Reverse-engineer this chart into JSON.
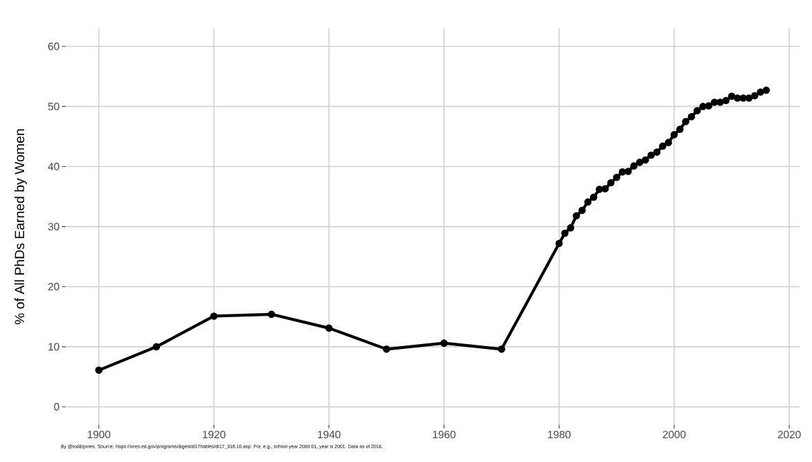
{
  "chart_data": {
    "type": "line",
    "ylabel": "% of All PhDs Earned by Women",
    "annotations": [
      "By @toddrjones. Source: https://nces.ed.gov/programs/digest/d17/tables/dt17_318.10.asp. For, e.g., school year 2000-01, year is 2001. Data as of 2016."
    ],
    "x": [
      1900,
      1910,
      1920,
      1930,
      1940,
      1950,
      1960,
      1970,
      1980,
      1981,
      1982,
      1983,
      1984,
      1985,
      1986,
      1987,
      1988,
      1989,
      1990,
      1991,
      1992,
      1993,
      1994,
      1995,
      1996,
      1997,
      1998,
      1999,
      2000,
      2001,
      2002,
      2003,
      2004,
      2005,
      2006,
      2007,
      2008,
      2009,
      2010,
      2011,
      2012,
      2013,
      2014,
      2015,
      2016
    ],
    "series": [
      {
        "color": "#000000",
        "values": [
          6.1,
          10.0,
          15.1,
          15.4,
          13.1,
          9.6,
          10.6,
          9.6,
          27.2,
          28.9,
          29.8,
          31.8,
          32.7,
          34.1,
          34.9,
          36.2,
          36.3,
          37.3,
          38.2,
          39.1,
          39.2,
          40.1,
          40.7,
          41.1,
          41.9,
          42.4,
          43.4,
          44.0,
          45.3,
          46.2,
          47.5,
          48.3,
          49.3,
          50.0,
          50.1,
          50.7,
          50.7,
          51.0,
          51.7,
          51.4,
          51.4,
          51.4,
          51.8,
          52.4,
          52.7
        ]
      }
    ],
    "xlim": [
      1894.2,
      2021.8
    ],
    "ylim": [
      -3,
      63
    ],
    "xticks": [
      1900,
      1920,
      1940,
      1960,
      1980,
      2000,
      2020
    ],
    "yticks": [
      0,
      10,
      20,
      30,
      40,
      50,
      60
    ],
    "grid": true,
    "marker": "circle",
    "line_style": "solid"
  }
}
